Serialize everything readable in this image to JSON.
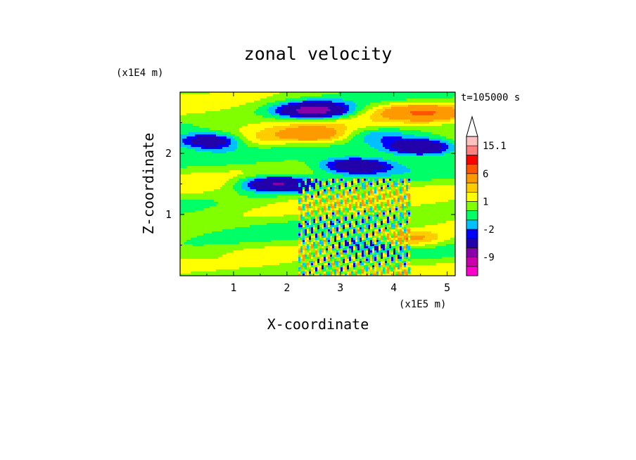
{
  "chart_data": {
    "type": "heatmap",
    "title": "zonal velocity",
    "xlabel": "X-coordinate",
    "ylabel": "Z-coordinate",
    "x_scale_note": "(x1E5 m)",
    "y_scale_note": "(x1E4 m)",
    "time_label": "t=105000 s",
    "xlim": [
      0,
      5.15
    ],
    "ylim": [
      0,
      3.0
    ],
    "x_ticks": [
      "1",
      "2",
      "3",
      "4",
      "5"
    ],
    "x_tick_values": [
      1,
      2,
      3,
      4,
      5
    ],
    "y_ticks": [
      "1",
      "2"
    ],
    "y_tick_values": [
      1,
      2
    ],
    "colorbar": {
      "labels": [
        "15.1",
        "6",
        "1",
        "-2",
        "-9"
      ],
      "label_values": [
        15.1,
        6,
        1,
        -2,
        -9
      ],
      "levels": [
        -15,
        -12,
        -9,
        -6,
        -3,
        -2,
        -1,
        0,
        1,
        2,
        3,
        6,
        9,
        12,
        15.1
      ],
      "colors": [
        "#ff00cc",
        "#cc00aa",
        "#8800aa",
        "#2200aa",
        "#0000ff",
        "#00c0ff",
        "#00ff66",
        "#80ff00",
        "#ffff00",
        "#ffcc00",
        "#ff9900",
        "#ff5500",
        "#ff0000",
        "#ff8080",
        "#ffc0c0"
      ],
      "extend": "max"
    },
    "features": [
      {
        "x": 2.5,
        "z": 2.7,
        "value": -8
      },
      {
        "x": 0.6,
        "z": 2.2,
        "value": -6
      },
      {
        "x": 4.5,
        "z": 2.1,
        "value": -7
      },
      {
        "x": 1.8,
        "z": 1.5,
        "value": -7
      },
      {
        "x": 3.3,
        "z": 1.8,
        "value": -6
      },
      {
        "x": 2.5,
        "z": 2.3,
        "value": 4
      },
      {
        "x": 4.7,
        "z": 2.65,
        "value": 4
      },
      {
        "x": 4.2,
        "z": 2.7,
        "value": 2
      },
      {
        "x": 1.3,
        "z": 2.2,
        "value": 2
      },
      {
        "x": 4.3,
        "z": 0.6,
        "value": 3
      },
      {
        "x": 0.5,
        "z": 0.3,
        "value": -1
      },
      {
        "x": 3.5,
        "z": 0.5,
        "value": -3
      },
      {
        "x": 3.7,
        "z": 2.3,
        "value": -2
      }
    ]
  }
}
